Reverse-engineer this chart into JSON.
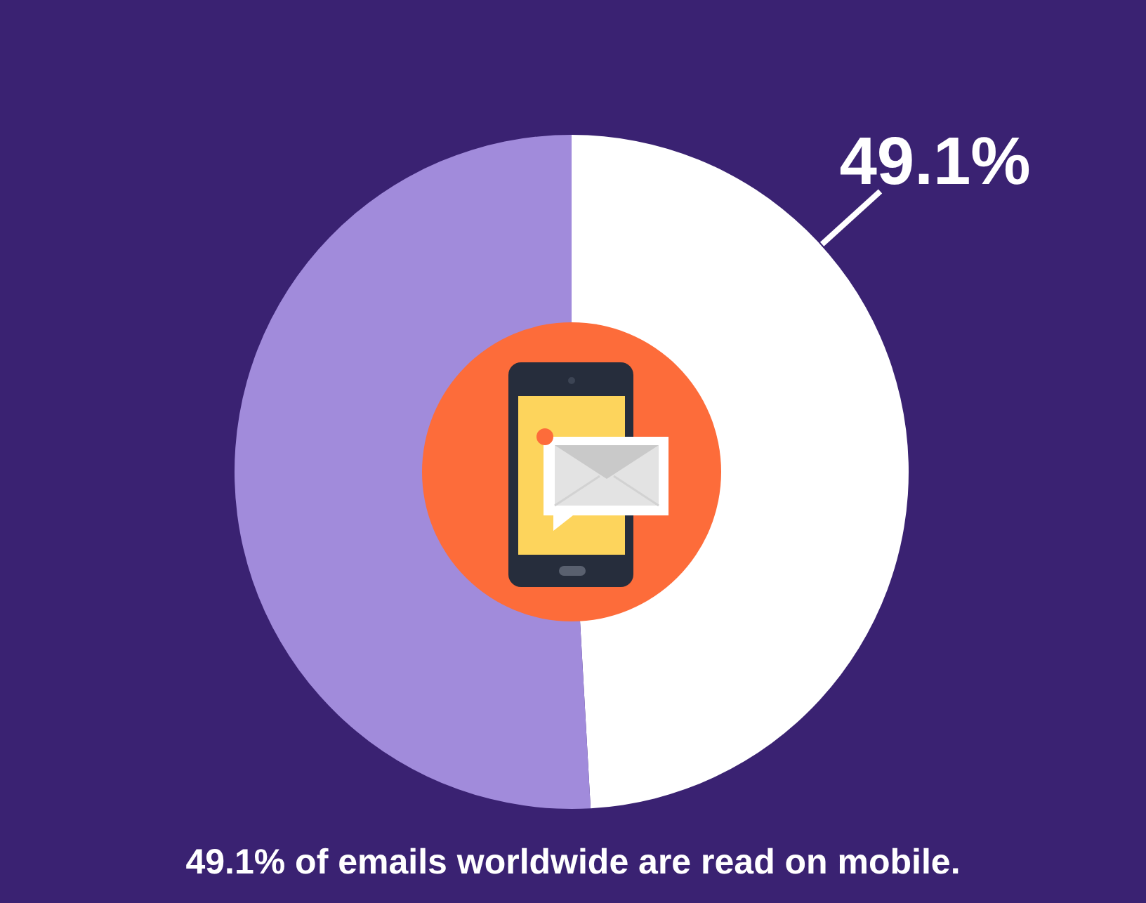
{
  "chart_data": {
    "type": "donut",
    "title": "49.1% of emails worldwide are read on mobile.",
    "categories": [
      null,
      null
    ],
    "values": [
      49.1,
      50.9
    ],
    "colors": [
      "#ffffff",
      "#a18bdb"
    ],
    "value_labels": [
      "49.1%",
      null
    ]
  }
}
